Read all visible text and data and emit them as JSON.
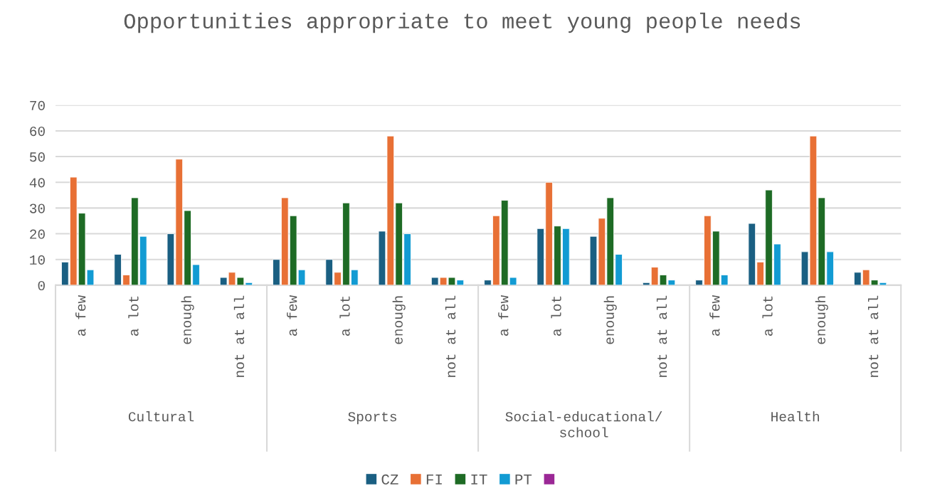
{
  "chart_data": {
    "type": "bar",
    "title": "Opportunities appropriate to meet young people needs",
    "categories": [
      "a few",
      "a lot",
      "enough",
      "not at all",
      "a few",
      "a lot",
      "enough",
      "not at all",
      "a few",
      "a lot",
      "enough",
      "not at all",
      "a few",
      "a lot",
      "enough",
      "not at all"
    ],
    "annotations": [
      "Cultural",
      "Sports",
      "Social-educational/\nschool",
      "Health"
    ],
    "series": [
      {
        "name": "CZ",
        "color": "#1a5f82",
        "values": [
          9,
          12,
          20,
          3,
          10,
          10,
          21,
          3,
          2,
          22,
          19,
          1,
          2,
          24,
          13,
          5
        ]
      },
      {
        "name": "FI",
        "color": "#e87035",
        "values": [
          42,
          4,
          49,
          5,
          34,
          5,
          58,
          3,
          27,
          40,
          26,
          7,
          27,
          9,
          58,
          6
        ]
      },
      {
        "name": "IT",
        "color": "#1e6b25",
        "values": [
          28,
          34,
          29,
          3,
          27,
          32,
          32,
          3,
          33,
          23,
          34,
          4,
          21,
          37,
          34,
          2
        ]
      },
      {
        "name": "PT",
        "color": "#129bd3",
        "values": [
          6,
          19,
          8,
          1,
          6,
          6,
          20,
          2,
          3,
          22,
          12,
          2,
          4,
          16,
          13,
          1
        ]
      },
      {
        "color": "#9b2896",
        "values": [
          null,
          null,
          null,
          null,
          null,
          null,
          null,
          null,
          null,
          null,
          null,
          null,
          null,
          null,
          null,
          null
        ]
      }
    ],
    "ylim": [
      0,
      70
    ],
    "yticks": [
      0,
      10,
      20,
      30,
      40,
      50,
      60,
      70
    ],
    "grid": "y",
    "legend": "bottom"
  }
}
